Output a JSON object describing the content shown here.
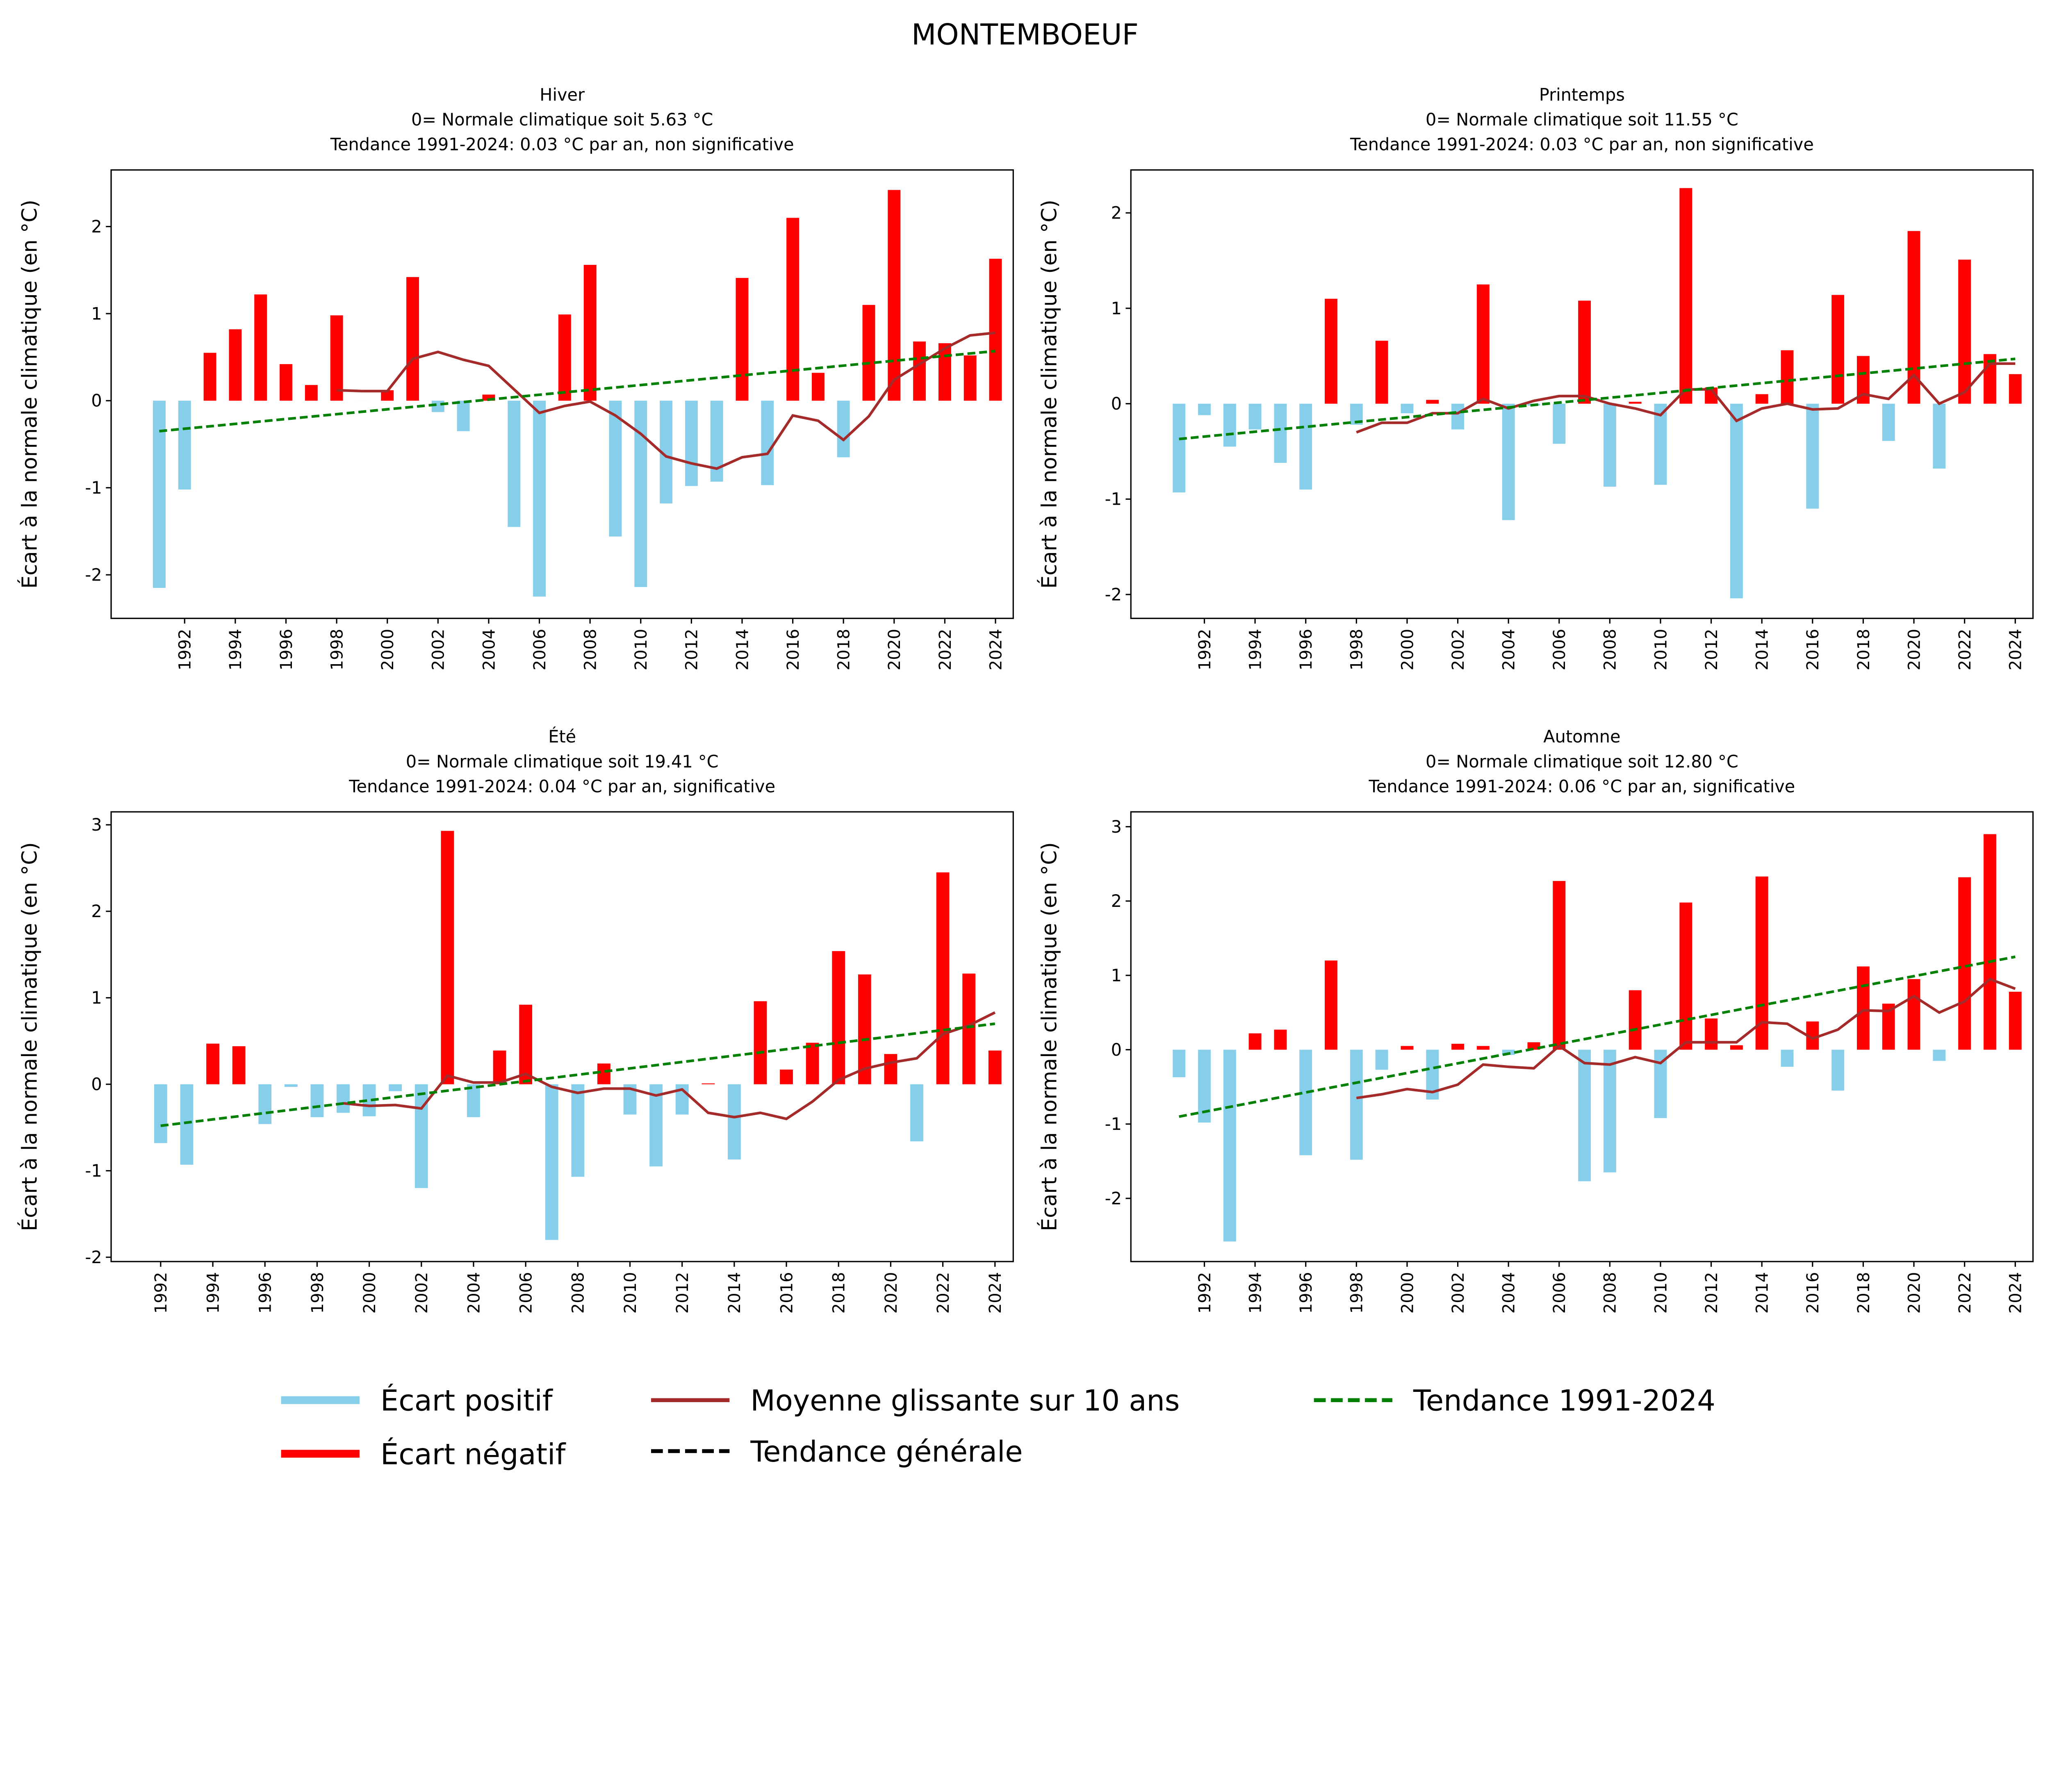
{
  "title": "MONTEMBOEUF",
  "colors": {
    "positive_bar": "#87ceeb",
    "negative_bar": "#ff0000",
    "rolling": "#a52a2a",
    "trend": "#008000",
    "general_trend": "#000000"
  },
  "legend": {
    "items": [
      {
        "label": "Écart positif",
        "color": "#87ceeb",
        "style": "thick"
      },
      {
        "label": "Écart négatif",
        "color": "#ff0000",
        "style": "thick"
      },
      {
        "label": "Moyenne glissante sur 10 ans",
        "color": "#a52a2a",
        "style": "line"
      },
      {
        "label": "Tendance générale",
        "color": "#000000",
        "style": "dashed"
      },
      {
        "label": "Tendance 1991-2024",
        "color": "#008000",
        "style": "dashed"
      }
    ]
  },
  "chart_data": [
    {
      "type": "bar",
      "title": [
        "Hiver",
        "0= Normale climatique soit 5.63 °C",
        "Tendance 1991-2024: 0.03 °C par an, non significative"
      ],
      "ylabel": "Écart à la normale climatique (en °C)",
      "ylim": [
        -2.5,
        2.65
      ],
      "yticks": [
        -2,
        -1,
        0,
        1,
        2
      ],
      "xticks": [
        1992,
        1994,
        1996,
        1998,
        2000,
        2002,
        2004,
        2006,
        2008,
        2010,
        2012,
        2014,
        2016,
        2018,
        2020,
        2022,
        2024
      ],
      "x_start": 1991,
      "values": [
        -2.15,
        -1.02,
        0.55,
        0.82,
        1.22,
        0.42,
        0.18,
        0.98,
        0.0,
        0.12,
        1.42,
        -0.13,
        -0.35,
        0.07,
        -1.45,
        -2.25,
        0.99,
        1.56,
        -1.56,
        -2.14,
        -1.18,
        -0.98,
        -0.93,
        1.41,
        -0.97,
        2.1,
        0.32,
        -0.65,
        1.1,
        2.42,
        0.68,
        0.66,
        0.52,
        1.63
      ],
      "rolling_start": 1998,
      "rolling": [
        0.12,
        0.11,
        0.11,
        0.48,
        0.56,
        0.47,
        0.4,
        0.13,
        -0.14,
        -0.06,
        -0.01,
        -0.17,
        -0.38,
        -0.64,
        -0.72,
        -0.78,
        -0.65,
        -0.61,
        -0.17,
        -0.23,
        -0.45,
        -0.18,
        0.24,
        0.42,
        0.6,
        0.75,
        0.78
      ],
      "trend": [
        -0.35,
        0.57
      ]
    },
    {
      "type": "bar",
      "title": [
        "Printemps",
        "0= Normale climatique soit 11.55 °C",
        "Tendance 1991-2024: 0.03 °C par an, non significative"
      ],
      "ylabel": "Écart à la normale climatique (en °C)",
      "ylim": [
        -2.25,
        2.45
      ],
      "yticks": [
        -2,
        -1,
        0,
        1,
        2
      ],
      "xticks": [
        1992,
        1994,
        1996,
        1998,
        2000,
        2002,
        2004,
        2006,
        2008,
        2010,
        2012,
        2014,
        2016,
        2018,
        2020,
        2022,
        2024
      ],
      "x_start": 1991,
      "values": [
        -0.93,
        -0.12,
        -0.45,
        -0.27,
        -0.62,
        -0.9,
        1.1,
        -0.22,
        0.66,
        -0.1,
        0.04,
        -0.27,
        1.25,
        -1.22,
        -0.02,
        -0.42,
        1.08,
        -0.87,
        0.02,
        -0.85,
        2.26,
        0.17,
        -2.04,
        0.1,
        0.56,
        -1.1,
        1.14,
        0.5,
        -0.39,
        1.81,
        -0.68,
        1.51,
        0.52,
        0.31
      ],
      "rolling_start": 1998,
      "rolling": [
        -0.3,
        -0.2,
        -0.2,
        -0.1,
        -0.1,
        0.05,
        -0.05,
        0.03,
        0.08,
        0.08,
        0.0,
        -0.05,
        -0.12,
        0.15,
        0.15,
        -0.18,
        -0.05,
        0.0,
        -0.06,
        -0.05,
        0.1,
        0.05,
        0.3,
        0.0,
        0.12,
        0.42,
        0.42
      ],
      "trend": [
        -0.37,
        0.47
      ]
    },
    {
      "type": "bar",
      "title": [
        "Été",
        "0= Normale climatique soit 19.41 °C",
        "Tendance 1991-2024: 0.04 °C par an, significative"
      ],
      "ylabel": "Écart à la normale climatique (en °C)",
      "ylim": [
        -2.05,
        3.15
      ],
      "yticks": [
        -2,
        -1,
        0,
        1,
        2,
        3
      ],
      "xticks": [
        1992,
        1994,
        1996,
        1998,
        2000,
        2002,
        2004,
        2006,
        2008,
        2010,
        2012,
        2014,
        2016,
        2018,
        2020,
        2022,
        2024
      ],
      "x_start": 1992,
      "values": [
        -0.68,
        -0.93,
        0.47,
        0.44,
        -0.46,
        -0.03,
        -0.38,
        -0.33,
        -0.37,
        -0.08,
        -1.2,
        2.93,
        -0.38,
        0.39,
        0.92,
        -1.8,
        -1.07,
        0.24,
        -0.35,
        -0.95,
        -0.35,
        0.01,
        -0.87,
        0.96,
        0.17,
        0.48,
        1.54,
        1.27,
        0.35,
        -0.66,
        2.45,
        1.28,
        0.39
      ],
      "rolling_start": 1999,
      "rolling": [
        -0.22,
        -0.25,
        -0.24,
        -0.28,
        0.1,
        0.02,
        0.02,
        0.12,
        -0.03,
        -0.1,
        -0.05,
        -0.05,
        -0.13,
        -0.06,
        -0.33,
        -0.38,
        -0.33,
        -0.4,
        -0.2,
        0.05,
        0.18,
        0.25,
        0.3,
        0.58,
        0.68,
        0.83
      ],
      "trend": [
        -0.48,
        0.7
      ]
    },
    {
      "type": "bar",
      "title": [
        "Automne",
        "0= Normale climatique soit 12.80 °C",
        "Tendance 1991-2024: 0.06 °C par an, significative"
      ],
      "ylabel": "Écart à la normale climatique (en °C)",
      "ylim": [
        -2.85,
        3.2
      ],
      "yticks": [
        -2,
        -1,
        0,
        1,
        2,
        3
      ],
      "xticks": [
        1992,
        1994,
        1996,
        1998,
        2000,
        2002,
        2004,
        2006,
        2008,
        2010,
        2012,
        2014,
        2016,
        2018,
        2020,
        2022,
        2024
      ],
      "x_start": 1991,
      "values": [
        -0.37,
        -0.98,
        -2.58,
        0.22,
        0.27,
        -1.42,
        1.2,
        -1.48,
        -0.27,
        0.05,
        -0.67,
        0.08,
        0.05,
        -0.07,
        0.1,
        2.27,
        -1.77,
        -1.65,
        0.8,
        -0.92,
        1.98,
        0.42,
        0.06,
        2.33,
        -0.23,
        0.38,
        -0.55,
        1.12,
        0.62,
        0.95,
        -0.15,
        2.32,
        2.9,
        0.78
      ],
      "rolling_start": 1998,
      "rolling": [
        -0.65,
        -0.6,
        -0.53,
        -0.57,
        -0.47,
        -0.2,
        -0.23,
        -0.25,
        0.05,
        -0.18,
        -0.2,
        -0.1,
        -0.18,
        0.1,
        0.1,
        0.1,
        0.37,
        0.35,
        0.15,
        0.27,
        0.53,
        0.52,
        0.72,
        0.5,
        0.65,
        0.95,
        0.82
      ],
      "trend": [
        -0.9,
        1.25
      ]
    }
  ]
}
